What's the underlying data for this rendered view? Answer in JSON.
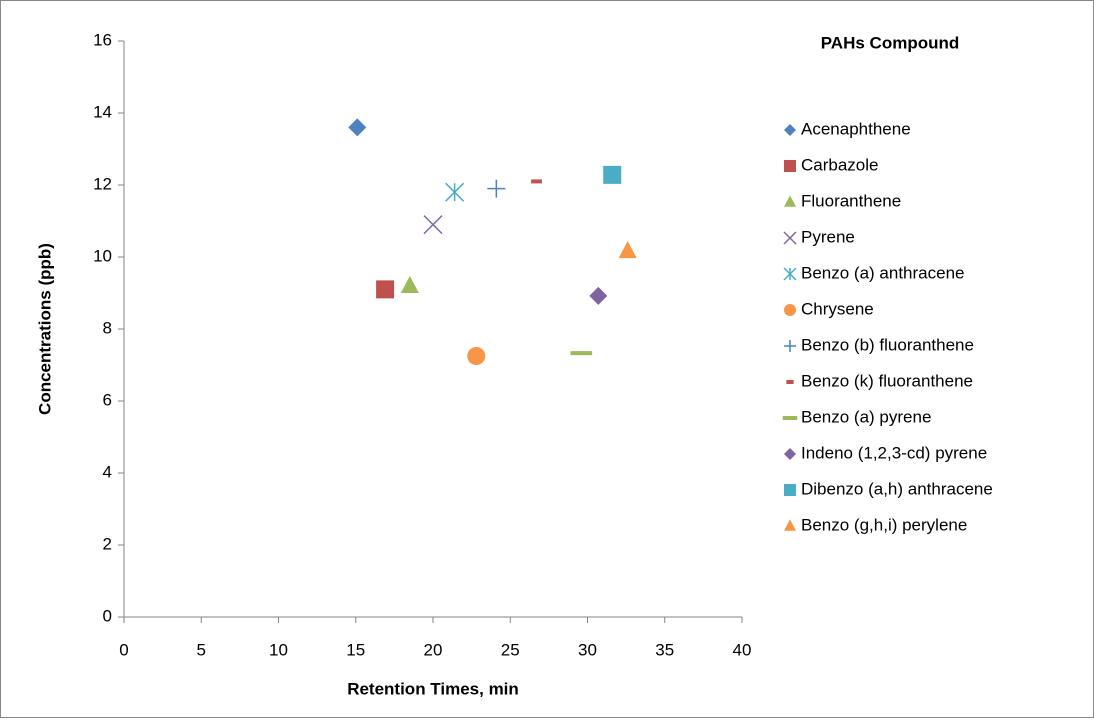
{
  "chart_data": {
    "type": "scatter",
    "x_label": "Retention Times, min",
    "y_label": "Concentrations (ppb)",
    "legend_title": "PAHs Compound",
    "legend": "right",
    "grid": false,
    "xlim": [
      0,
      40
    ],
    "xticks": [
      0,
      5,
      10,
      15,
      20,
      25,
      30,
      35,
      40
    ],
    "ylim": [
      0,
      16
    ],
    "yticks": [
      0,
      2,
      4,
      6,
      8,
      10,
      12,
      14,
      16
    ],
    "series": [
      {
        "name": "Acenaphthene",
        "color": "#4f81bd",
        "marker": "diamond",
        "x": [
          15.1
        ],
        "values": [
          13.6
        ]
      },
      {
        "name": "Carbazole",
        "color": "#c0504d",
        "marker": "square",
        "x": [
          16.9
        ],
        "values": [
          9.1
        ]
      },
      {
        "name": "Fluoranthene",
        "color": "#9bbb59",
        "marker": "triangle",
        "x": [
          18.5
        ],
        "values": [
          9.2
        ]
      },
      {
        "name": "Pyrene",
        "color": "#8064a2",
        "marker": "x",
        "x": [
          20.0
        ],
        "values": [
          10.9
        ]
      },
      {
        "name": "Benzo (a) anthracene",
        "color": "#4bacc6",
        "marker": "star",
        "x": [
          21.4
        ],
        "values": [
          11.8
        ]
      },
      {
        "name": "Chrysene",
        "color": "#f79646",
        "marker": "circle",
        "x": [
          22.8
        ],
        "values": [
          7.25
        ]
      },
      {
        "name": "Benzo (b) fluoranthene",
        "color": "#4f81bd",
        "marker": "plus",
        "x": [
          24.1
        ],
        "values": [
          11.9
        ]
      },
      {
        "name": "Benzo (k) fluoranthene",
        "color": "#c0504d",
        "marker": "dash",
        "x": [
          26.7
        ],
        "values": [
          12.1
        ]
      },
      {
        "name": "Benzo (a) pyrene",
        "color": "#9bbb59",
        "marker": "longdash",
        "x": [
          29.6
        ],
        "values": [
          7.33
        ]
      },
      {
        "name": "Indeno (1,2,3-cd) pyrene",
        "color": "#8064a2",
        "marker": "diamond",
        "x": [
          30.7
        ],
        "values": [
          8.92
        ]
      },
      {
        "name": "Dibenzo (a,h) anthracene",
        "color": "#4bacc6",
        "marker": "square",
        "x": [
          31.6
        ],
        "values": [
          12.28
        ]
      },
      {
        "name": "Benzo (g,h,i) perylene",
        "color": "#f79646",
        "marker": "triangle",
        "x": [
          32.6
        ],
        "values": [
          10.17
        ]
      }
    ]
  }
}
